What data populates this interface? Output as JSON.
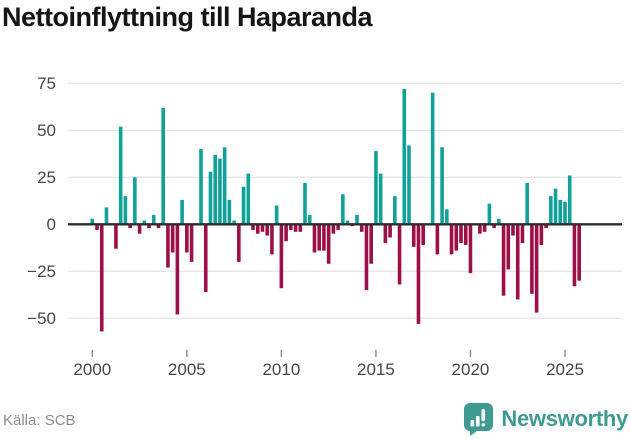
{
  "title": "Nettoinflyttning till Haparanda",
  "footer": {
    "source": "Källa: SCB",
    "brand": "Newsworthy"
  },
  "colors": {
    "positive": "#10a19a",
    "negative": "#9c1047",
    "brand_teal": "#3e9a93",
    "grid": "#e5e5e5",
    "zero_line": "#2d2d2d",
    "axis_text": "#474747"
  },
  "chart_data": {
    "type": "bar",
    "title": "Nettoinflyttning till Haparanda",
    "xlabel": "",
    "ylabel": "",
    "frequency": "quarterly",
    "start_year": 2000,
    "x_tick_years": [
      2000,
      2005,
      2010,
      2015,
      2020,
      2025
    ],
    "x_tick_labels": [
      "2000",
      "2005",
      "2010",
      "2015",
      "2020",
      "2025"
    ],
    "y_ticks": [
      75,
      50,
      25,
      0,
      -25,
      -50
    ],
    "y_tick_labels": [
      "75",
      "50",
      "25",
      "0",
      "−25",
      "−50"
    ],
    "ylim": [
      -60,
      80
    ],
    "grid": true,
    "legend": "none",
    "values": [
      3,
      -3,
      -57,
      9,
      0,
      -13,
      52,
      15,
      -2,
      25,
      -5,
      2,
      -2,
      5,
      -2,
      62,
      -23,
      -15,
      -48,
      13,
      -15,
      -20,
      0,
      40,
      -36,
      28,
      37,
      35,
      41,
      13,
      2,
      -20,
      20,
      27,
      -3,
      -5,
      -4,
      -6,
      -16,
      10,
      -34,
      -9,
      -3,
      -4,
      -4,
      22,
      5,
      -15,
      -14,
      -14,
      -21,
      -5,
      -3,
      16,
      2,
      -1,
      5,
      -4,
      -35,
      -21,
      39,
      27,
      -10,
      -7,
      15,
      -32,
      72,
      42,
      -12,
      -53,
      -11,
      0,
      70,
      -16,
      41,
      8,
      -16,
      -14,
      -10,
      -11,
      -26,
      0,
      -5,
      -4,
      11,
      -2,
      3,
      -38,
      -24,
      -6,
      -40,
      -10,
      22,
      -37,
      -47,
      -11,
      -2,
      15,
      19,
      13,
      12,
      26,
      -33,
      -30
    ]
  }
}
